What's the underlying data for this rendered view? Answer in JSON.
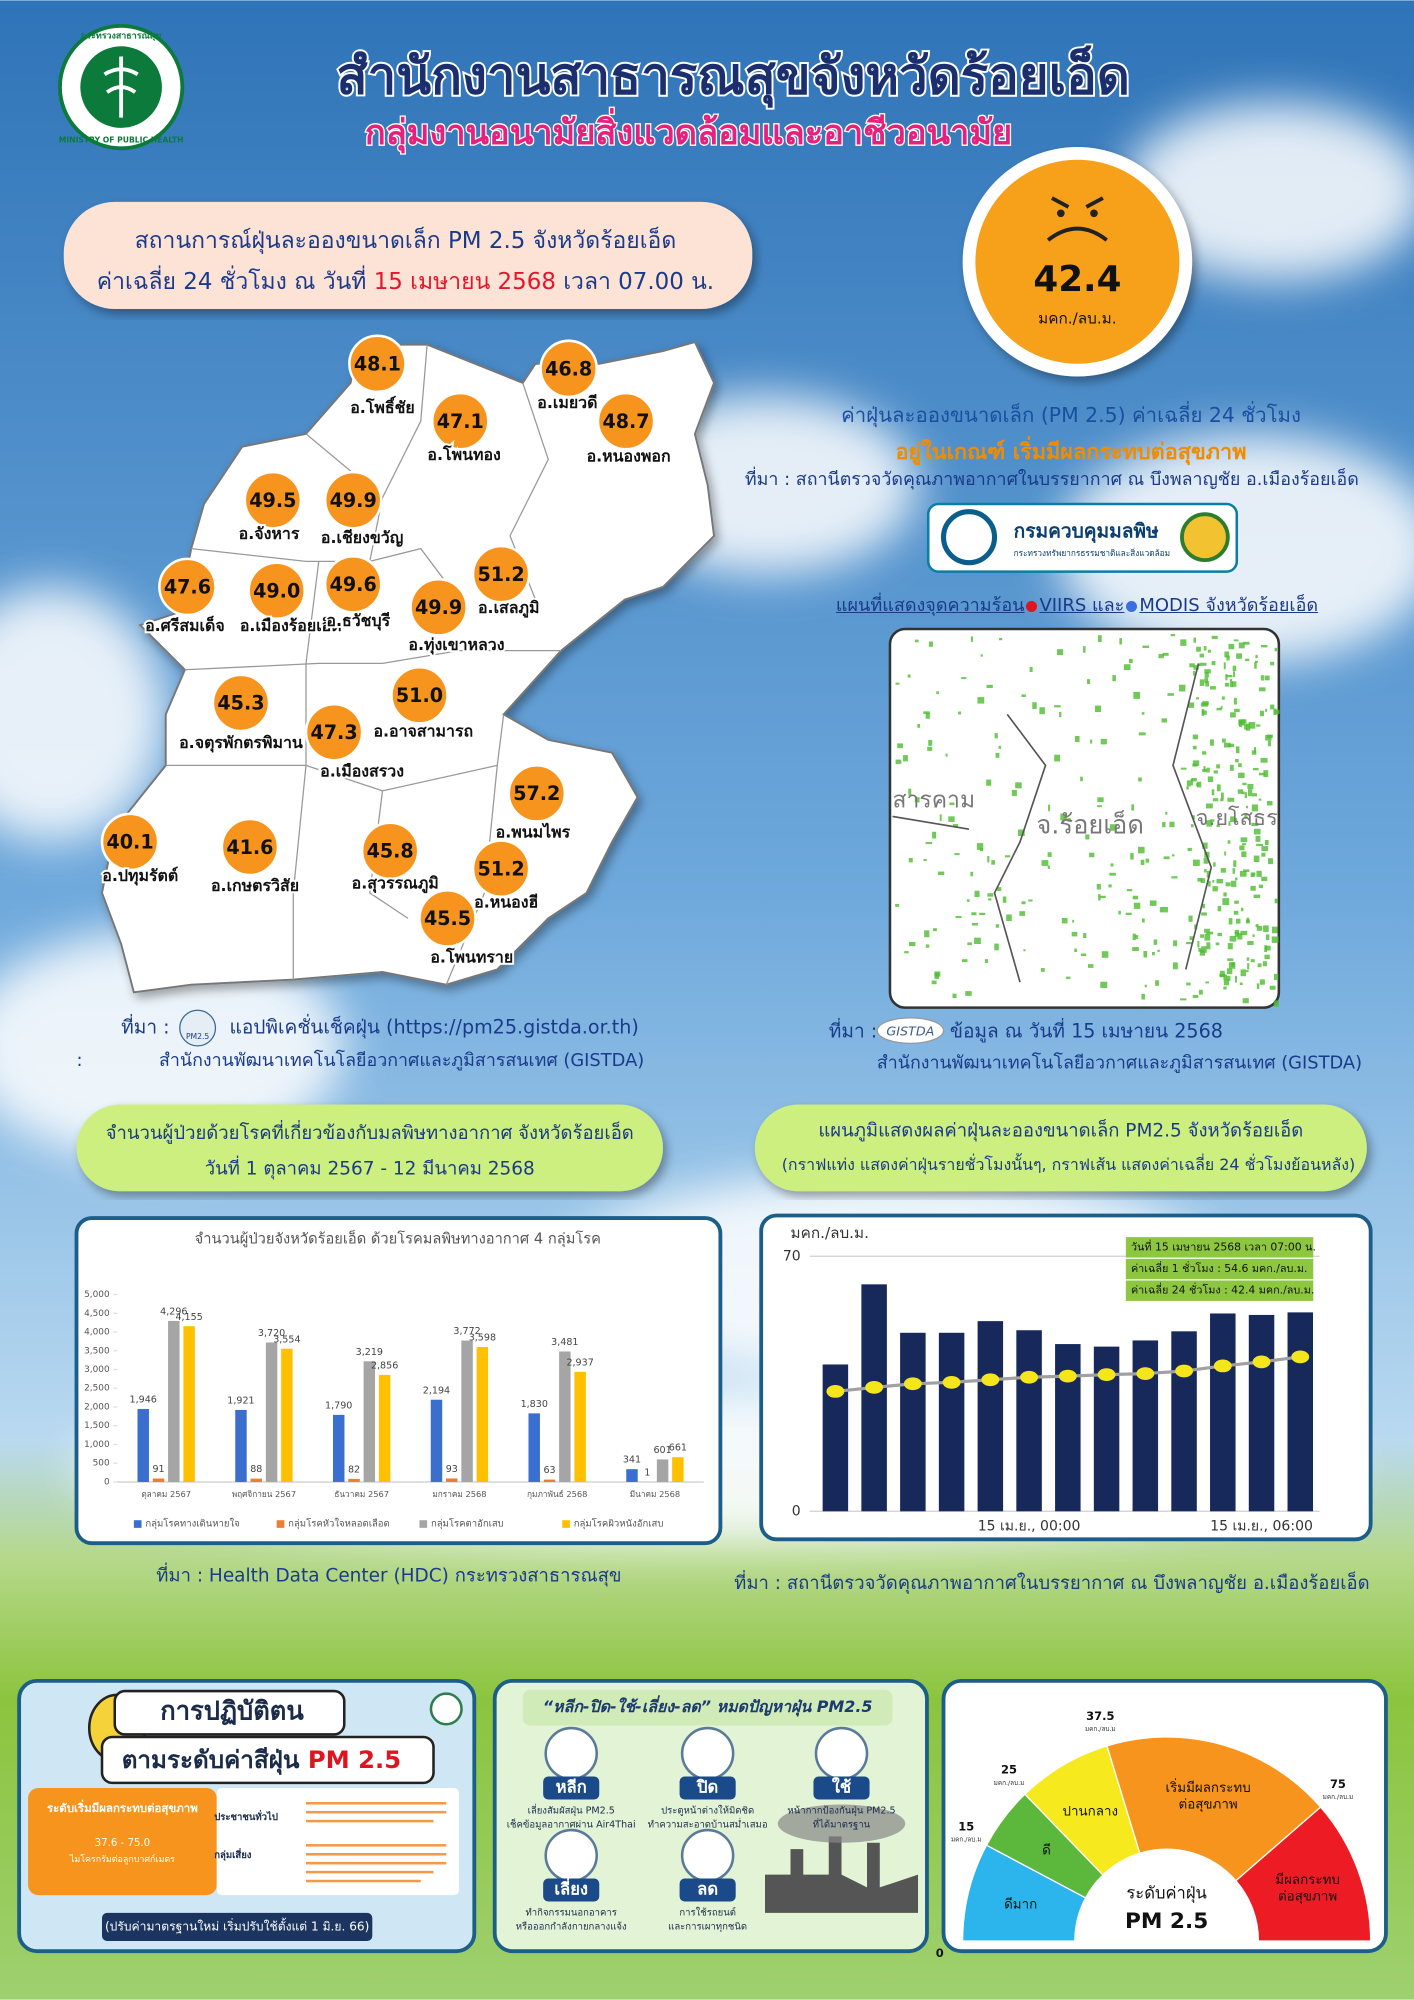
{
  "header": {
    "logo_text": "กระทรวงสาธารณสุข",
    "logo_text_en": "MINISTRY OF PUBLIC HEALTH",
    "title": "สำนักงานสาธารณสุขจังหวัดร้อยเอ็ด",
    "subtitle": "กลุ่มงานอนามัยสิ่งแวดล้อมและอาชีวอนามัย"
  },
  "situation": {
    "line1": "สถานการณ์ฝุ่นละอองขนาดเล็ก PM 2.5 จังหวัดร้อยเอ็ด",
    "line2_prefix": "ค่าเฉลี่ย 24 ชั่วโมง ณ วันที่",
    "date": "15 เมษายน 2568",
    "line2_suffix": "เวลา 07.00 น."
  },
  "current": {
    "value": 42.4,
    "unit": "มคก./ลบ.ม.",
    "description": "ค่าฝุ่นละอองขนาดเล็ก (PM 2.5) ค่าเฉลี่ย 24 ชั่วโมง",
    "level": "อยู่ในเกณฑ์ เริ่มมีผลกระทบต่อสุขภาพ",
    "source": "ที่มา : สถานีตรวจวัดคุณภาพอากาศในบรรยากาศ ณ บึงพลาญชัย อ.เมืองร้อยเอ็ด",
    "agency": "กรมควบคุมมลพิษ",
    "agency_sub": "กระทรวงทรัพยากรธรรมชาติและสิ่งแวดล้อม"
  },
  "station_map": {
    "stations": [
      {
        "value": "48.1",
        "name": "อ.โพธิ์ชัย"
      },
      {
        "value": "46.8",
        "name": "อ.เมยวดี"
      },
      {
        "value": "47.1",
        "name": "อ.โพนทอง"
      },
      {
        "value": "48.7",
        "name": "อ.หนองพอก"
      },
      {
        "value": "49.5",
        "name": "อ.จังหาร"
      },
      {
        "value": "49.9",
        "name": "อ.เชียงขวัญ"
      },
      {
        "value": "51.2",
        "name": "อ.เสลภูมิ"
      },
      {
        "value": "47.6",
        "name": "อ.ศรีสมเด็จ"
      },
      {
        "value": "49.0",
        "name": "อ.เมืองร้อยเอ็ด"
      },
      {
        "value": "49.6",
        "name": "อ.ธวัชบุรี"
      },
      {
        "value": "49.9",
        "name": "อ.ทุ่งเขาหลวง"
      },
      {
        "value": "51.0",
        "name": "อ.อาจสามารถ"
      },
      {
        "value": "45.3",
        "name": "อ.จตุรพักตรพิมาน"
      },
      {
        "value": "47.3",
        "name": "อ.เมืองสรวง"
      },
      {
        "value": "57.2",
        "name": "อ.พนมไพร"
      },
      {
        "value": "40.1",
        "name": "อ.ปทุมรัตต์"
      },
      {
        "value": "41.6",
        "name": "อ.เกษตรวิสัย"
      },
      {
        "value": "45.8",
        "name": "อ.สุวรรณภูมิ"
      },
      {
        "value": "51.2",
        "name": "อ.หนองฮี"
      },
      {
        "value": "45.5",
        "name": "อ.โพนทราย"
      }
    ],
    "source": "ที่มา :",
    "app_badge": "PM2.5",
    "source_app": "แอปพิเคชั่นเช็คฝุ่น (https://pm25.gistda.or.th)",
    "source_agency_prefix": ":",
    "source_agency": "สำนักงานพัฒนาเทคโนโลยีอวกาศและภูมิสารสนเทศ (GISTDA)"
  },
  "hotspot_map": {
    "title_prefix": "แผนที่แสดงจุดความร้อน",
    "viirs": "VIIRS",
    "and": "และ",
    "modis": "MODIS",
    "title_suffix": "จังหวัดร้อยเอ็ด",
    "labels": [
      "สารคาม",
      "จ.ร้อยเอ็ด",
      "จ.ยโสธร"
    ],
    "source": "ที่มา :",
    "badge": "GISTDA",
    "source_date": "ข้อมูล ณ วันที่ 15 เมษายน 2568",
    "source_agency": "สำนักงานพัฒนาเทคโนโลยีอวกาศและภูมิสารสนเทศ (GISTDA)"
  },
  "patients": {
    "heading": "จำนวนผู้ป่วยด้วยโรคที่เกี่ยวข้องกับมลพิษทางอากาศ จังหวัดร้อยเอ็ด",
    "period": "วันที่ 1 ตุลาคม 2567 - 12 มีนาคม 2568",
    "chart": {
      "type": "bar",
      "title": "จำนวนผู้ป่วยจังหวัดร้อยเอ็ด ด้วยโรคมลพิษทางอากาศ 4 กลุ่มโรค",
      "categories": [
        "ตุลาคม 2567",
        "พฤศจิกายน 2567",
        "ธันวาคม 2567",
        "มกราคม 2568",
        "กุมภาพันธ์ 2568",
        "มีนาคม 2568"
      ],
      "ylim": [
        0,
        5000
      ],
      "yticks": [
        0,
        500,
        {
          "value": 1000,
          "label": "1,000"
        },
        {
          "value": 1500,
          "label": "1,500"
        },
        {
          "value": 2000,
          "label": "2,000"
        },
        {
          "value": 2500,
          "label": "2,500"
        },
        {
          "value": 3000,
          "label": "3,000"
        },
        {
          "value": 3500,
          "label": "3,500"
        },
        {
          "value": 4000,
          "label": "4,000"
        },
        {
          "value": 4500,
          "label": "4,500"
        },
        {
          "value": 5000,
          "label": "5,000"
        }
      ],
      "legend": "bottom",
      "series": [
        {
          "name": "กลุ่มโรคทางเดินหายใจ",
          "color": "#3a6fd0",
          "values": [
            1946,
            1921,
            1790,
            2194,
            1830,
            341
          ],
          "value_labels": [
            "1,946",
            "1,921",
            "1,790",
            "2,194",
            "1,830",
            "341"
          ]
        },
        {
          "name": "กลุ่มโรคหัวใจหลอดเลือด",
          "color": "#ed7d31",
          "values": [
            91,
            88,
            82,
            93,
            63,
            1
          ],
          "value_labels": [
            "91",
            "88",
            "82",
            "93",
            "63",
            "1"
          ]
        },
        {
          "name": "กลุ่มโรคตาอักเสบ",
          "color": "#a5a5a5",
          "values": [
            4296,
            3720,
            3219,
            3772,
            3481,
            601
          ],
          "value_labels": [
            "4,296",
            "3,720",
            "3,219",
            "3,772",
            "3,481",
            "601"
          ]
        },
        {
          "name": "กลุ่มโรคผิวหนังอักเสบ",
          "color": "#ffc000",
          "values": [
            4155,
            3554,
            2856,
            3598,
            2937,
            661
          ],
          "value_labels": [
            "4,155",
            "3,554",
            "2,856",
            "3,598",
            "2,937",
            "661"
          ]
        }
      ]
    },
    "source": "ที่มา :  Health Data Center (HDC) กระทรวงสาธารณสุข"
  },
  "pm_chart": {
    "heading": "แผนภูมิแสดงผลค่าฝุ่นละอองขนาดเล็ก PM2.5 จังหวัดร้อยเอ็ด",
    "note": "(กราฟแท่ง แสดงค่าฝุ่นรายชั่วโมงนั้นๆ, กราฟเส้น แสดงค่าเฉลี่ย 24 ชั่วโมงย้อนหลัง)",
    "chart": {
      "type": "bar",
      "unit_label": "มคก./ลบ.ม.",
      "categories": [
        null,
        null,
        null,
        null,
        null,
        "15 เม.ย., 00:00",
        null,
        null,
        null,
        null,
        null,
        "15 เม.ย., 06:00",
        null
      ],
      "ylim": [
        0,
        70
      ],
      "yticks": [
        0,
        70
      ],
      "grid": true,
      "bar_color": "#17285a",
      "values": [
        40.3,
        62.3,
        49.0,
        49.0,
        52.2,
        49.7,
        45.9,
        45.2,
        46.9,
        49.4,
        54.3,
        53.9,
        54.6
      ],
      "line_color": "#a0a0a0",
      "point_color": "#f5e61b",
      "line_values": [
        32.9,
        34.0,
        35.0,
        35.4,
        36.1,
        36.8,
        37.1,
        37.5,
        37.8,
        38.5,
        39.9,
        41.0,
        42.4
      ],
      "info": [
        "วันที่  15 เมษายน  2568  เวลา 07:00 น.",
        "ค่าเฉลี่ย 1 ชั่วโมง   :  54.6 มคก./ลบ.ม.",
        "ค่าเฉลี่ย 24 ชั่วโมง  :  42.4 มคก./ลบ.ม."
      ]
    },
    "source": "ที่มา : สถานีตรวจวัดคุณภาพอากาศในบรรยากาศ ณ บึงพลาญชัย อ.เมืองร้อยเอ็ด"
  },
  "practice_panel": {
    "title1": "การปฏิบัติตน",
    "title2": "ตามระดับค่าสีฝุ่น",
    "pm": "PM 2.5",
    "level": "ระดับเริ่มมีผลกระทบต่อสุขภาพ",
    "range": "37.6 - 75.0",
    "range_unit": "ไมโครกรัมต่อลูกบาศก์เมตร",
    "groups": [
      "ประชาชนทั่วไป",
      "กลุ่มเสี่ยง"
    ],
    "note": "(ปรับค่ามาตรฐานใหม่ เริ่มปรับใช้ตั้งแต่ 1 มิ.ย. 66)"
  },
  "tips_panel": {
    "title": "“หลีก-ปิด-ใช้-เลี่ยง-ลด” หมดปัญหาฝุ่น PM2.5",
    "items": [
      {
        "word": "หลีก",
        "lines": [
          "เลี่ยงสัมผัสฝุ่น PM2.5",
          "เช็คข้อมูลอากาศผ่าน Air4Thai"
        ]
      },
      {
        "word": "ปิด",
        "lines": [
          "ประตูหน้าต่างให้มิดชิด",
          "ทำความสะอาดบ้านสม่ำเสมอ"
        ]
      },
      {
        "word": "ใช้",
        "lines": [
          "หน้ากากป้องกันฝุ่น PM2.5",
          "ที่ได้มาตรฐาน"
        ]
      },
      {
        "word": "เลี่ยง",
        "lines": [
          "ทำกิจกรรมนอกอาคาร",
          "หรือออกกำลังกายกลางแจ้ง"
        ]
      },
      {
        "word": "ลด",
        "lines": [
          "การใช้รถยนต์",
          "และการเผาทุกชนิด"
        ]
      }
    ]
  },
  "gauge": {
    "type": "gauge",
    "center_title": "ระดับค่าฝุ่น",
    "center_pm": "PM 2.5",
    "tick_unit": "มคก./ลบ.ม",
    "ticks": [
      0,
      15,
      25,
      37.5,
      75
    ],
    "segments": [
      {
        "label": [
          "ดีมาก"
        ],
        "color": "#2bb5ec"
      },
      {
        "label": [
          "ดี"
        ],
        "color": "#5cb83c"
      },
      {
        "label": [
          "ปานกลาง"
        ],
        "color": "#f6ea1f"
      },
      {
        "label": [
          "เริ่มมีผลกระทบ",
          "ต่อสุขภาพ"
        ],
        "color": "#f7941d"
      },
      {
        "label": [
          "มีผลกระทบ",
          "ต่อสุขภาพ"
        ],
        "color": "#ed1c24"
      }
    ]
  }
}
